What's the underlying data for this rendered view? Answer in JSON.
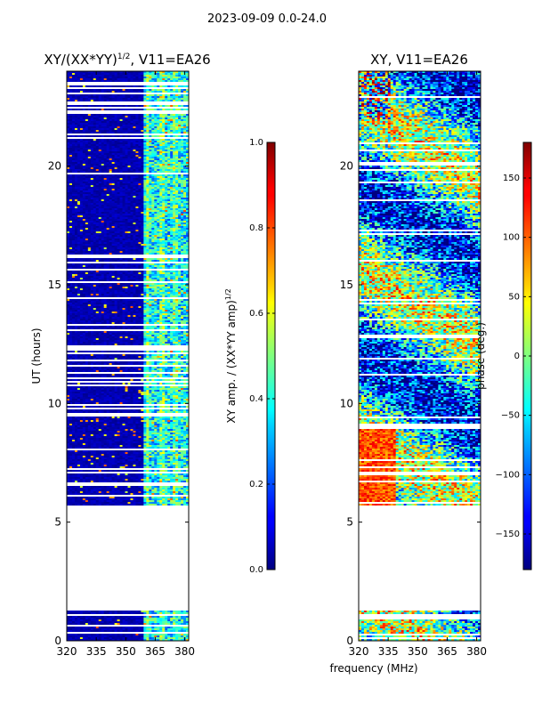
{
  "figure": {
    "suptitle": "2023-09-09 0.0-24.0",
    "shared_xlabel": "frequency (MHz)"
  },
  "chart_data": [
    {
      "type": "heatmap",
      "title": "XY/(XX*YY)",
      "title_exponent": "1/2",
      "title_suffix": ", V11=EA26",
      "xlabel": "",
      "ylabel": "UT (hours)",
      "x_ticks": [
        320,
        335,
        350,
        365,
        380
      ],
      "y_ticks": [
        0,
        5,
        10,
        15,
        20
      ],
      "xlim": [
        320,
        382
      ],
      "ylim": [
        0,
        24
      ],
      "data_gaps_hours": [
        [
          1.3,
          5.7
        ]
      ],
      "colorbar": {
        "label": "XY amp. / (XX*YY amp)",
        "label_exponent": "1/2",
        "range": [
          0.0,
          1.0
        ],
        "ticks": [
          "0.0",
          "0.2",
          "0.4",
          "0.6",
          "0.8",
          "1.0"
        ],
        "colormap": "jet"
      }
    },
    {
      "type": "heatmap",
      "title": "XY, V11=EA26",
      "xlabel": "frequency (MHz)",
      "ylabel": "",
      "x_ticks": [
        320,
        335,
        350,
        365,
        380
      ],
      "y_ticks": [
        0,
        5,
        10,
        15,
        20
      ],
      "xlim": [
        320,
        382
      ],
      "ylim": [
        0,
        24
      ],
      "data_gaps_hours": [
        [
          1.3,
          5.7
        ]
      ],
      "colorbar": {
        "label": "phase (deg.)",
        "range": [
          -180,
          180
        ],
        "ticks": [
          "−150",
          "−100",
          "−50",
          "0",
          "50",
          "100",
          "150"
        ],
        "tick_values": [
          -150,
          -100,
          -50,
          0,
          50,
          100,
          150
        ],
        "colormap": "jet"
      }
    }
  ]
}
